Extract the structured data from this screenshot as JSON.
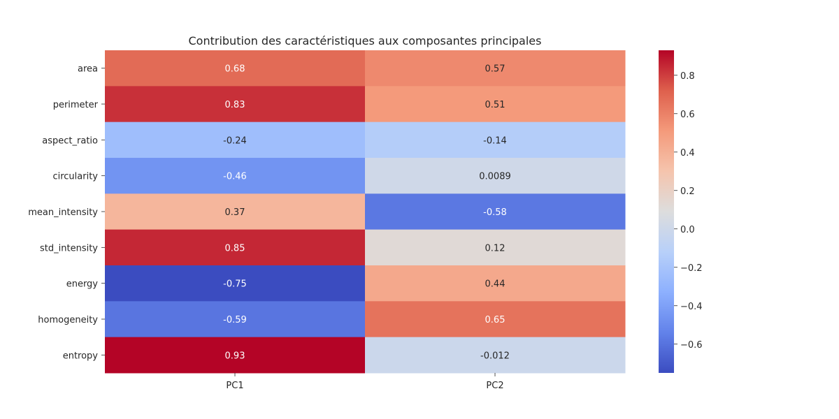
{
  "chart_data": {
    "type": "heatmap",
    "title": "Contribution des caractéristiques aux composantes principales",
    "xlabel": "",
    "ylabel": "",
    "columns": [
      "PC1",
      "PC2"
    ],
    "rows": [
      "area",
      "perimeter",
      "aspect_ratio",
      "circularity",
      "mean_intensity",
      "std_intensity",
      "energy",
      "homogeneity",
      "entropy"
    ],
    "values": [
      [
        0.68,
        0.57
      ],
      [
        0.83,
        0.51
      ],
      [
        -0.24,
        -0.14
      ],
      [
        -0.46,
        0.0089
      ],
      [
        0.37,
        -0.58
      ],
      [
        0.85,
        0.12
      ],
      [
        -0.75,
        0.44
      ],
      [
        -0.59,
        0.65
      ],
      [
        0.93,
        -0.012
      ]
    ],
    "value_labels": [
      [
        "0.68",
        "0.57"
      ],
      [
        "0.83",
        "0.51"
      ],
      [
        "-0.24",
        "-0.14"
      ],
      [
        "-0.46",
        "0.0089"
      ],
      [
        "0.37",
        "-0.58"
      ],
      [
        "0.85",
        "0.12"
      ],
      [
        "-0.75",
        "0.44"
      ],
      [
        "-0.59",
        "0.65"
      ],
      [
        "0.93",
        "-0.012"
      ]
    ],
    "colormap": "coolwarm",
    "vmin": -0.75,
    "vmax": 0.93,
    "colorbar": {
      "ticks": [
        0.8,
        0.6,
        0.4,
        0.2,
        0.0,
        -0.2,
        -0.4,
        -0.6
      ],
      "tick_labels": [
        "0.8",
        "0.6",
        "0.4",
        "0.2",
        "0.0",
        "−0.2",
        "−0.4",
        "−0.6"
      ]
    },
    "colors": {
      "low": "#3b4cc0",
      "mid": "#dddddd",
      "high": "#b40426",
      "text_dark": "#262626",
      "text_light": "#ffffff"
    }
  }
}
